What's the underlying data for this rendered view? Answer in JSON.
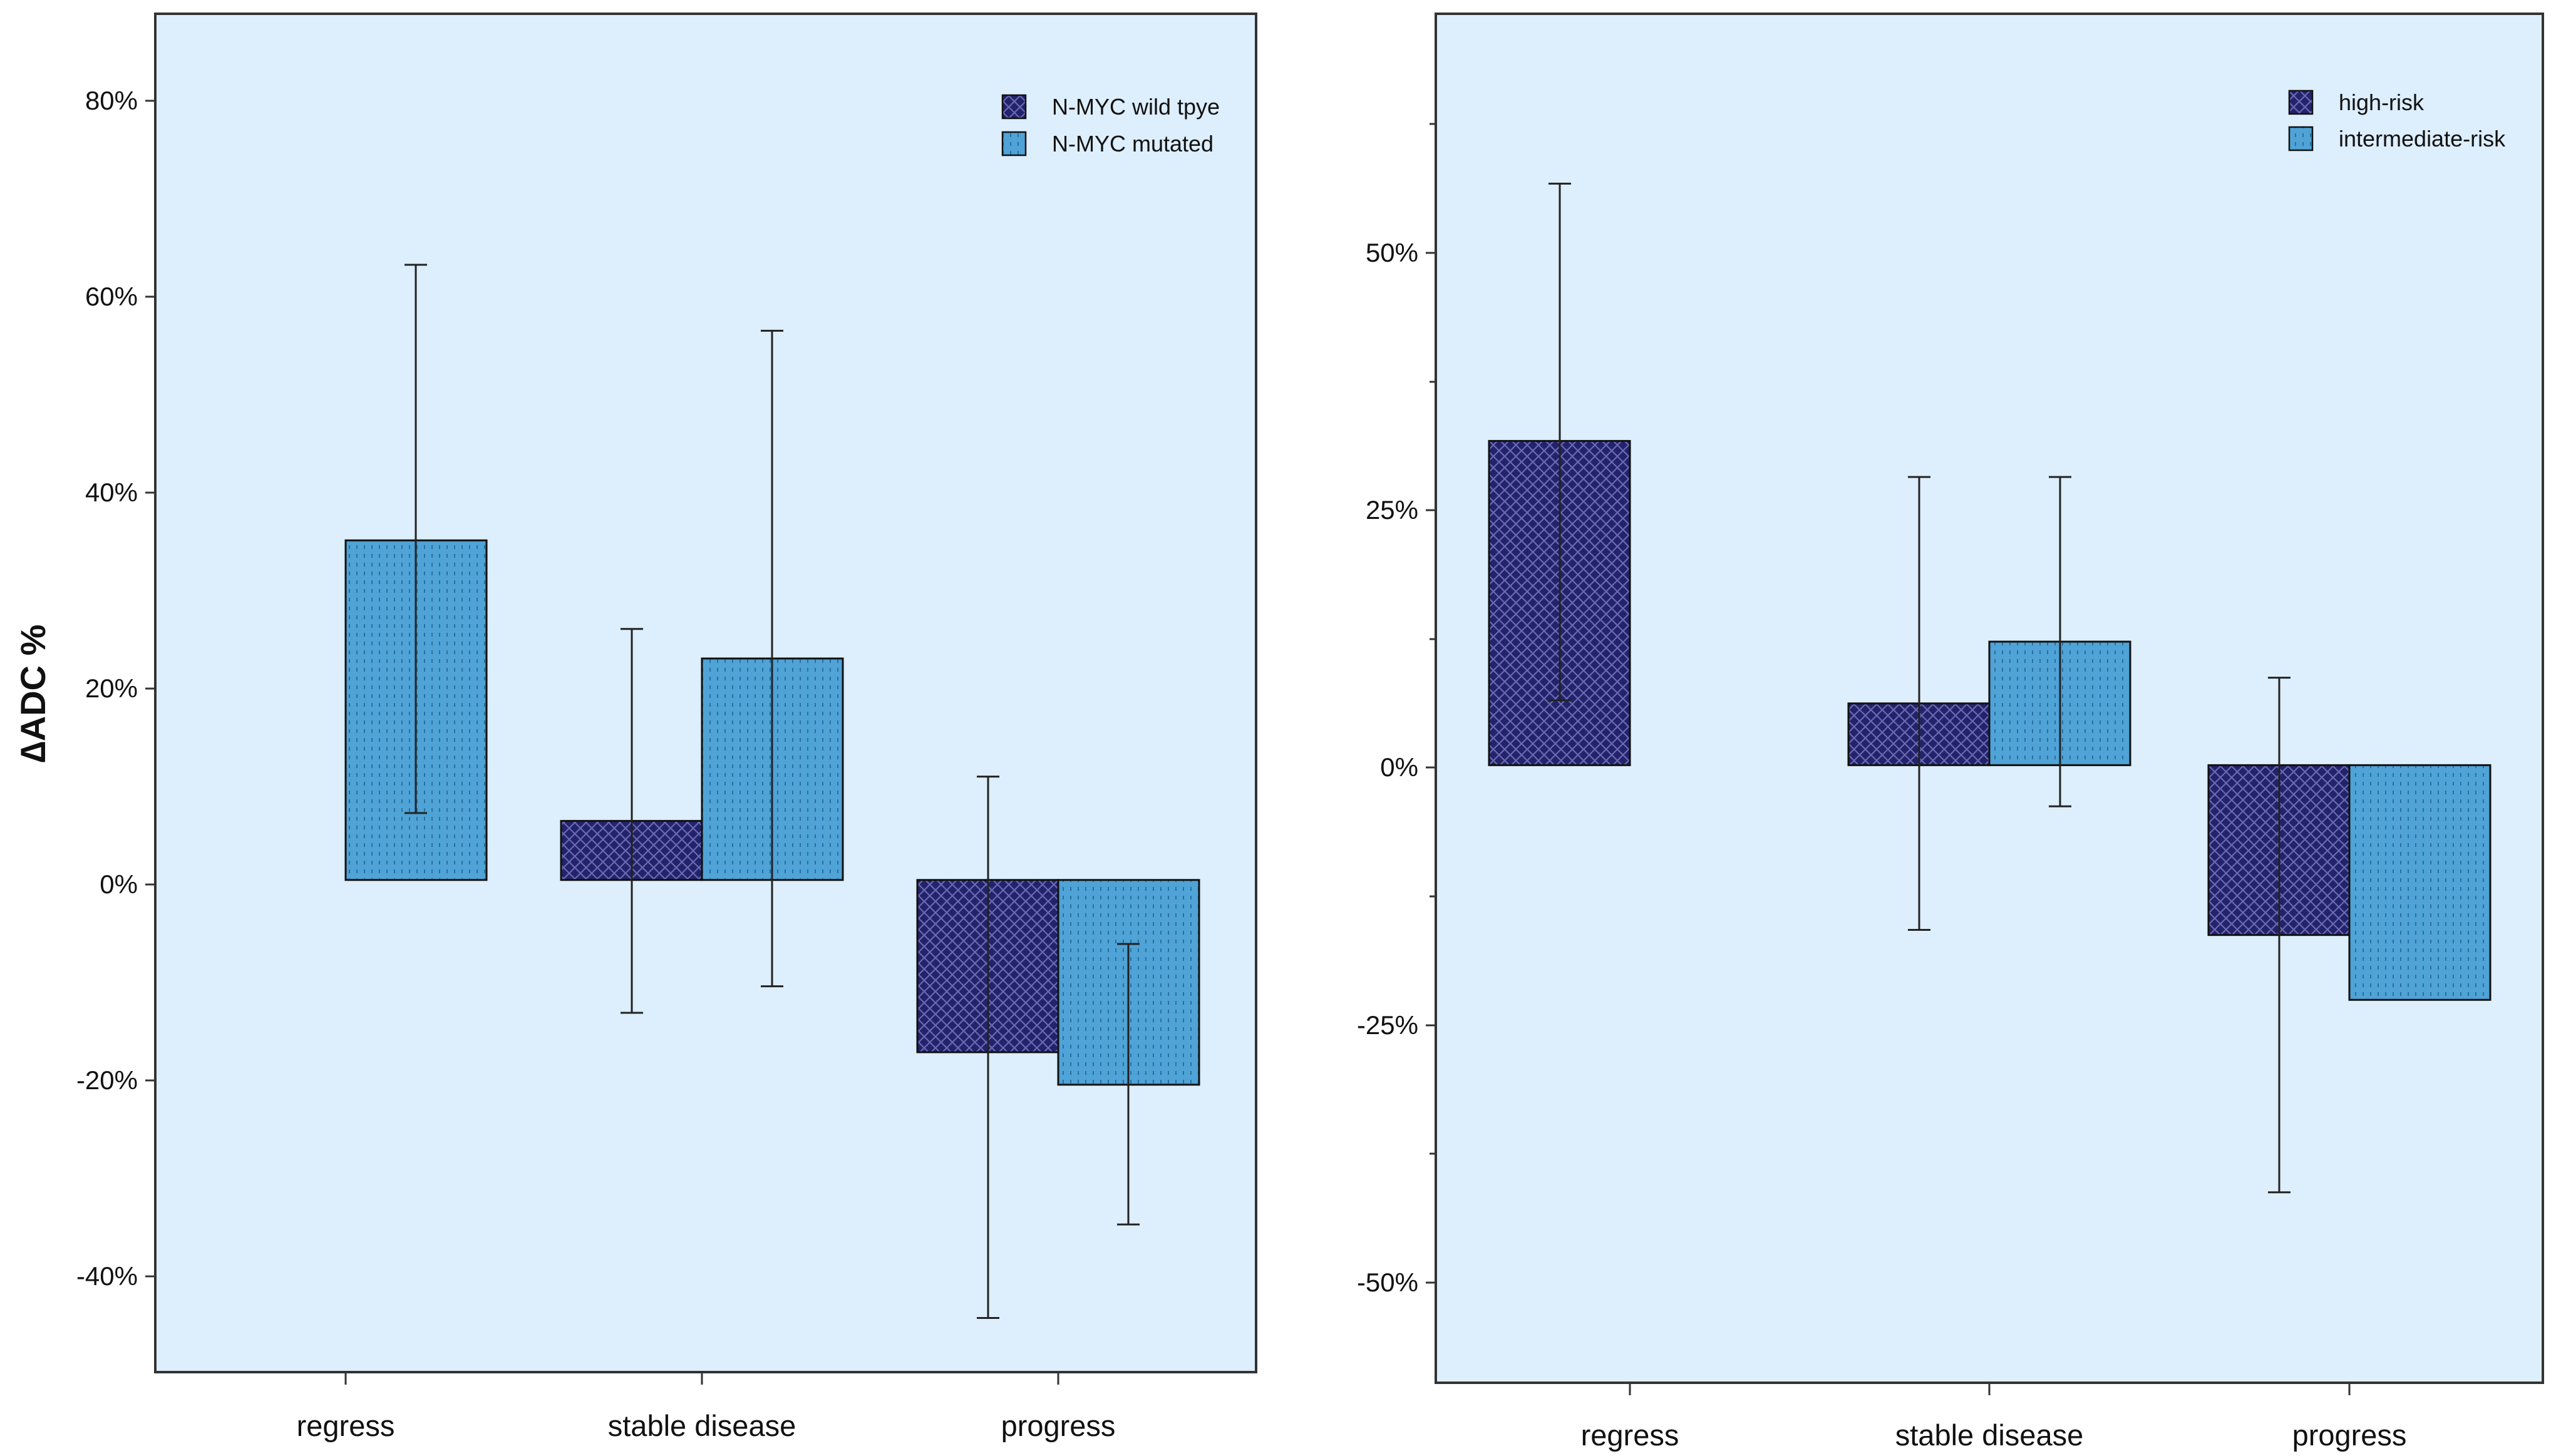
{
  "chart_data": [
    {
      "type": "bar",
      "ylabel": "∆ADC %",
      "xlabel": "",
      "categories": [
        "regress",
        "stable disease",
        "progress"
      ],
      "ylim": [
        -50,
        88
      ],
      "yticks": [
        -40,
        -20,
        0,
        20,
        40,
        60,
        80
      ],
      "ytick_labels": [
        "-40%",
        "-20%",
        "0%",
        "20%",
        "40%",
        "60%",
        "80%"
      ],
      "legend_position": "top-right",
      "series": [
        {
          "name": "N-MYC wild tpye",
          "pattern": "crosshatch",
          "color": "#23236B",
          "values": [
            null,
            6,
            -17.5
          ],
          "error_low": [
            null,
            -13.5,
            -44.5
          ],
          "error_high": [
            null,
            25.5,
            10.5
          ]
        },
        {
          "name": "N-MYC mutated",
          "pattern": "dotted",
          "color": "#4FA3D6",
          "values": [
            34.5,
            22.5,
            -20.8
          ],
          "error_low": [
            6.8,
            -10.8,
            -35
          ],
          "error_high": [
            62.5,
            55.8,
            -6.5
          ]
        }
      ]
    },
    {
      "type": "bar",
      "ylabel": "",
      "xlabel": "",
      "categories": [
        "regress",
        "stable disease",
        "progress"
      ],
      "ylim": [
        -60,
        73
      ],
      "yticks": [
        -50,
        -25,
        0,
        25,
        50
      ],
      "ytick_labels": [
        "-50%",
        "-25%",
        "0%",
        "25%",
        "50%"
      ],
      "minor_yticks": [
        -37.5,
        -12.5,
        12.5,
        37.5,
        62.5
      ],
      "legend_position": "top-right",
      "series": [
        {
          "name": "high-risk",
          "pattern": "crosshatch",
          "color": "#23236B",
          "values": [
            31.5,
            6,
            -16.5
          ],
          "error_low": [
            6.3,
            -16,
            -41.5
          ],
          "error_high": [
            56.5,
            28,
            8.5
          ]
        },
        {
          "name": "intermediate-risk",
          "pattern": "dotted",
          "color": "#4FA3D6",
          "values": [
            null,
            12,
            -22.8
          ],
          "error_low": [
            null,
            -4,
            null
          ],
          "error_high": [
            null,
            28,
            null
          ]
        }
      ]
    }
  ],
  "colors": {
    "plot_background": "#DDEEFC",
    "axis": "#333333",
    "series_dark": "#23236B",
    "series_light": "#4FA3D6"
  }
}
